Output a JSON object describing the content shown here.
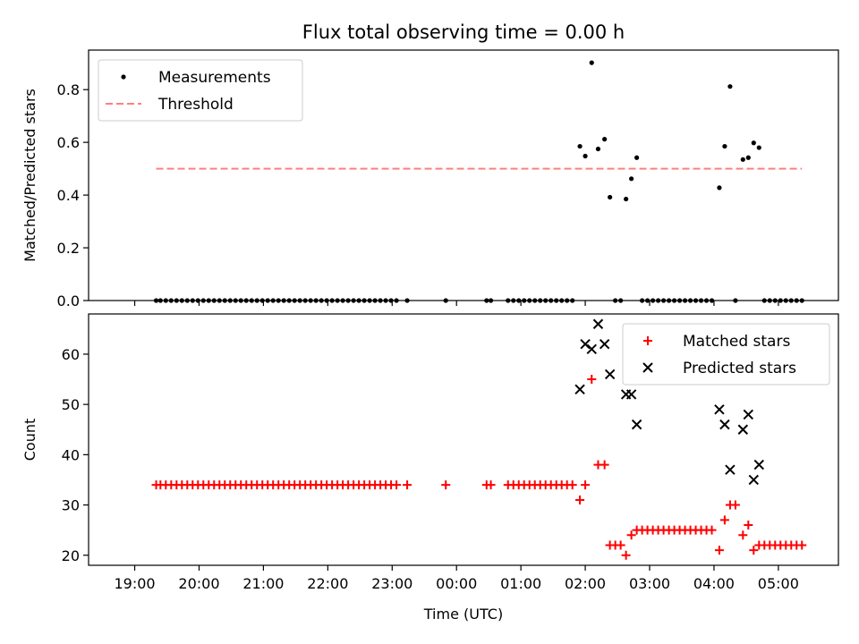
{
  "chart_data": [
    {
      "type": "scatter",
      "title": "Flux total observing time = 0.00 h",
      "ylabel": "Matched/Predicted stars",
      "ylim": [
        0,
        0.95
      ],
      "yticks": [
        "0.0",
        "0.2",
        "0.4",
        "0.6",
        "0.8"
      ],
      "grid": false,
      "legend": "top-left",
      "series": [
        {
          "name": "Measurements",
          "marker": "dot",
          "color": "#000000",
          "points": [
            [
              "19:20",
              0
            ],
            [
              "19:24",
              0
            ],
            [
              "19:29",
              0
            ],
            [
              "19:34",
              0
            ],
            [
              "19:39",
              0
            ],
            [
              "19:44",
              0
            ],
            [
              "19:49",
              0
            ],
            [
              "19:54",
              0
            ],
            [
              "19:59",
              0
            ],
            [
              "20:04",
              0
            ],
            [
              "20:09",
              0
            ],
            [
              "20:14",
              0
            ],
            [
              "20:19",
              0
            ],
            [
              "20:24",
              0
            ],
            [
              "20:29",
              0
            ],
            [
              "20:34",
              0
            ],
            [
              "20:39",
              0
            ],
            [
              "20:44",
              0
            ],
            [
              "20:49",
              0
            ],
            [
              "20:54",
              0
            ],
            [
              "20:59",
              0
            ],
            [
              "21:04",
              0
            ],
            [
              "21:09",
              0
            ],
            [
              "21:14",
              0
            ],
            [
              "21:19",
              0
            ],
            [
              "21:24",
              0
            ],
            [
              "21:29",
              0
            ],
            [
              "21:34",
              0
            ],
            [
              "21:39",
              0
            ],
            [
              "21:44",
              0
            ],
            [
              "21:49",
              0
            ],
            [
              "21:54",
              0
            ],
            [
              "21:59",
              0
            ],
            [
              "22:04",
              0
            ],
            [
              "22:09",
              0
            ],
            [
              "22:14",
              0
            ],
            [
              "22:19",
              0
            ],
            [
              "22:24",
              0
            ],
            [
              "22:29",
              0
            ],
            [
              "22:34",
              0
            ],
            [
              "22:39",
              0
            ],
            [
              "22:44",
              0
            ],
            [
              "22:49",
              0
            ],
            [
              "22:54",
              0
            ],
            [
              "22:59",
              0
            ],
            [
              "23:04",
              0
            ],
            [
              "23:14",
              0
            ],
            [
              "23:50",
              0
            ],
            [
              "00:28",
              0
            ],
            [
              "00:32",
              0
            ],
            [
              "00:48",
              0
            ],
            [
              "00:53",
              0
            ],
            [
              "00:58",
              0
            ],
            [
              "01:03",
              0
            ],
            [
              "01:08",
              0
            ],
            [
              "01:13",
              0
            ],
            [
              "01:18",
              0
            ],
            [
              "01:23",
              0
            ],
            [
              "01:28",
              0
            ],
            [
              "01:33",
              0
            ],
            [
              "01:38",
              0
            ],
            [
              "01:43",
              0
            ],
            [
              "01:48",
              0
            ],
            [
              "01:55",
              0.585
            ],
            [
              "02:00",
              0.548
            ],
            [
              "02:06",
              0.902
            ],
            [
              "02:12",
              0.575
            ],
            [
              "02:18",
              0.612
            ],
            [
              "02:23",
              0.392
            ],
            [
              "02:28",
              0
            ],
            [
              "02:33",
              0
            ],
            [
              "02:38",
              0.385
            ],
            [
              "02:43",
              0.462
            ],
            [
              "02:48",
              0.542
            ],
            [
              "02:53",
              0
            ],
            [
              "02:58",
              0
            ],
            [
              "03:03",
              0
            ],
            [
              "03:08",
              0
            ],
            [
              "03:13",
              0
            ],
            [
              "03:18",
              0
            ],
            [
              "03:23",
              0
            ],
            [
              "03:28",
              0
            ],
            [
              "03:33",
              0
            ],
            [
              "03:38",
              0
            ],
            [
              "03:43",
              0
            ],
            [
              "03:48",
              0
            ],
            [
              "03:53",
              0
            ],
            [
              "03:58",
              0
            ],
            [
              "04:05",
              0.428
            ],
            [
              "04:10",
              0.585
            ],
            [
              "04:15",
              0.812
            ],
            [
              "04:20",
              0
            ],
            [
              "04:27",
              0.535
            ],
            [
              "04:32",
              0.542
            ],
            [
              "04:37",
              0.598
            ],
            [
              "04:42",
              0.58
            ],
            [
              "04:47",
              0
            ],
            [
              "04:52",
              0
            ],
            [
              "04:57",
              0
            ],
            [
              "05:02",
              0
            ],
            [
              "05:07",
              0
            ],
            [
              "05:12",
              0
            ],
            [
              "05:17",
              0
            ],
            [
              "05:22",
              0
            ]
          ]
        },
        {
          "name": "Threshold",
          "line": "dashed",
          "color": "#ff7f7f",
          "points": [
            [
              "19:20",
              0.5
            ],
            [
              "05:22",
              0.5
            ]
          ]
        }
      ]
    },
    {
      "type": "scatter",
      "xlabel": "Time (UTC)",
      "ylabel": "Count",
      "xticks": [
        "19:00",
        "20:00",
        "21:00",
        "22:00",
        "23:00",
        "00:00",
        "01:00",
        "02:00",
        "03:00",
        "04:00",
        "05:00"
      ],
      "yticks": [
        "20",
        "30",
        "40",
        "50",
        "60"
      ],
      "ylim": [
        18,
        68
      ],
      "grid": false,
      "legend": "top-right",
      "series": [
        {
          "name": "Matched stars",
          "marker": "plus",
          "color": "#ff0000",
          "points": [
            [
              "19:20",
              34
            ],
            [
              "19:24",
              34
            ],
            [
              "19:29",
              34
            ],
            [
              "19:34",
              34
            ],
            [
              "19:39",
              34
            ],
            [
              "19:44",
              34
            ],
            [
              "19:49",
              34
            ],
            [
              "19:54",
              34
            ],
            [
              "19:59",
              34
            ],
            [
              "20:04",
              34
            ],
            [
              "20:09",
              34
            ],
            [
              "20:14",
              34
            ],
            [
              "20:19",
              34
            ],
            [
              "20:24",
              34
            ],
            [
              "20:29",
              34
            ],
            [
              "20:34",
              34
            ],
            [
              "20:39",
              34
            ],
            [
              "20:44",
              34
            ],
            [
              "20:49",
              34
            ],
            [
              "20:54",
              34
            ],
            [
              "20:59",
              34
            ],
            [
              "21:04",
              34
            ],
            [
              "21:09",
              34
            ],
            [
              "21:14",
              34
            ],
            [
              "21:19",
              34
            ],
            [
              "21:24",
              34
            ],
            [
              "21:29",
              34
            ],
            [
              "21:34",
              34
            ],
            [
              "21:39",
              34
            ],
            [
              "21:44",
              34
            ],
            [
              "21:49",
              34
            ],
            [
              "21:54",
              34
            ],
            [
              "21:59",
              34
            ],
            [
              "22:04",
              34
            ],
            [
              "22:09",
              34
            ],
            [
              "22:14",
              34
            ],
            [
              "22:19",
              34
            ],
            [
              "22:24",
              34
            ],
            [
              "22:29",
              34
            ],
            [
              "22:34",
              34
            ],
            [
              "22:39",
              34
            ],
            [
              "22:44",
              34
            ],
            [
              "22:49",
              34
            ],
            [
              "22:54",
              34
            ],
            [
              "22:59",
              34
            ],
            [
              "23:04",
              34
            ],
            [
              "23:14",
              34
            ],
            [
              "23:50",
              34
            ],
            [
              "00:28",
              34
            ],
            [
              "00:32",
              34
            ],
            [
              "00:48",
              34
            ],
            [
              "00:53",
              34
            ],
            [
              "00:58",
              34
            ],
            [
              "01:03",
              34
            ],
            [
              "01:08",
              34
            ],
            [
              "01:13",
              34
            ],
            [
              "01:18",
              34
            ],
            [
              "01:23",
              34
            ],
            [
              "01:28",
              34
            ],
            [
              "01:33",
              34
            ],
            [
              "01:38",
              34
            ],
            [
              "01:43",
              34
            ],
            [
              "01:48",
              34
            ],
            [
              "01:55",
              31
            ],
            [
              "02:00",
              34
            ],
            [
              "02:06",
              55
            ],
            [
              "02:12",
              38
            ],
            [
              "02:18",
              38
            ],
            [
              "02:23",
              22
            ],
            [
              "02:28",
              22
            ],
            [
              "02:33",
              22
            ],
            [
              "02:38",
              20
            ],
            [
              "02:43",
              24
            ],
            [
              "02:48",
              25
            ],
            [
              "02:53",
              25
            ],
            [
              "02:58",
              25
            ],
            [
              "03:03",
              25
            ],
            [
              "03:08",
              25
            ],
            [
              "03:13",
              25
            ],
            [
              "03:18",
              25
            ],
            [
              "03:23",
              25
            ],
            [
              "03:28",
              25
            ],
            [
              "03:33",
              25
            ],
            [
              "03:38",
              25
            ],
            [
              "03:43",
              25
            ],
            [
              "03:48",
              25
            ],
            [
              "03:53",
              25
            ],
            [
              "03:58",
              25
            ],
            [
              "04:05",
              21
            ],
            [
              "04:10",
              27
            ],
            [
              "04:15",
              30
            ],
            [
              "04:20",
              30
            ],
            [
              "04:27",
              24
            ],
            [
              "04:32",
              26
            ],
            [
              "04:37",
              21
            ],
            [
              "04:42",
              22
            ],
            [
              "04:47",
              22
            ],
            [
              "04:52",
              22
            ],
            [
              "04:57",
              22
            ],
            [
              "05:02",
              22
            ],
            [
              "05:07",
              22
            ],
            [
              "05:12",
              22
            ],
            [
              "05:17",
              22
            ],
            [
              "05:22",
              22
            ]
          ]
        },
        {
          "name": "Predicted stars",
          "marker": "x",
          "color": "#000000",
          "points": [
            [
              "01:55",
              53
            ],
            [
              "02:00",
              62
            ],
            [
              "02:06",
              61
            ],
            [
              "02:12",
              66
            ],
            [
              "02:18",
              62
            ],
            [
              "02:23",
              56
            ],
            [
              "02:38",
              52
            ],
            [
              "02:43",
              52
            ],
            [
              "02:48",
              46
            ],
            [
              "04:05",
              49
            ],
            [
              "04:10",
              46
            ],
            [
              "04:15",
              37
            ],
            [
              "04:27",
              45
            ],
            [
              "04:32",
              48
            ],
            [
              "04:37",
              35
            ],
            [
              "04:42",
              38
            ]
          ]
        }
      ]
    }
  ]
}
